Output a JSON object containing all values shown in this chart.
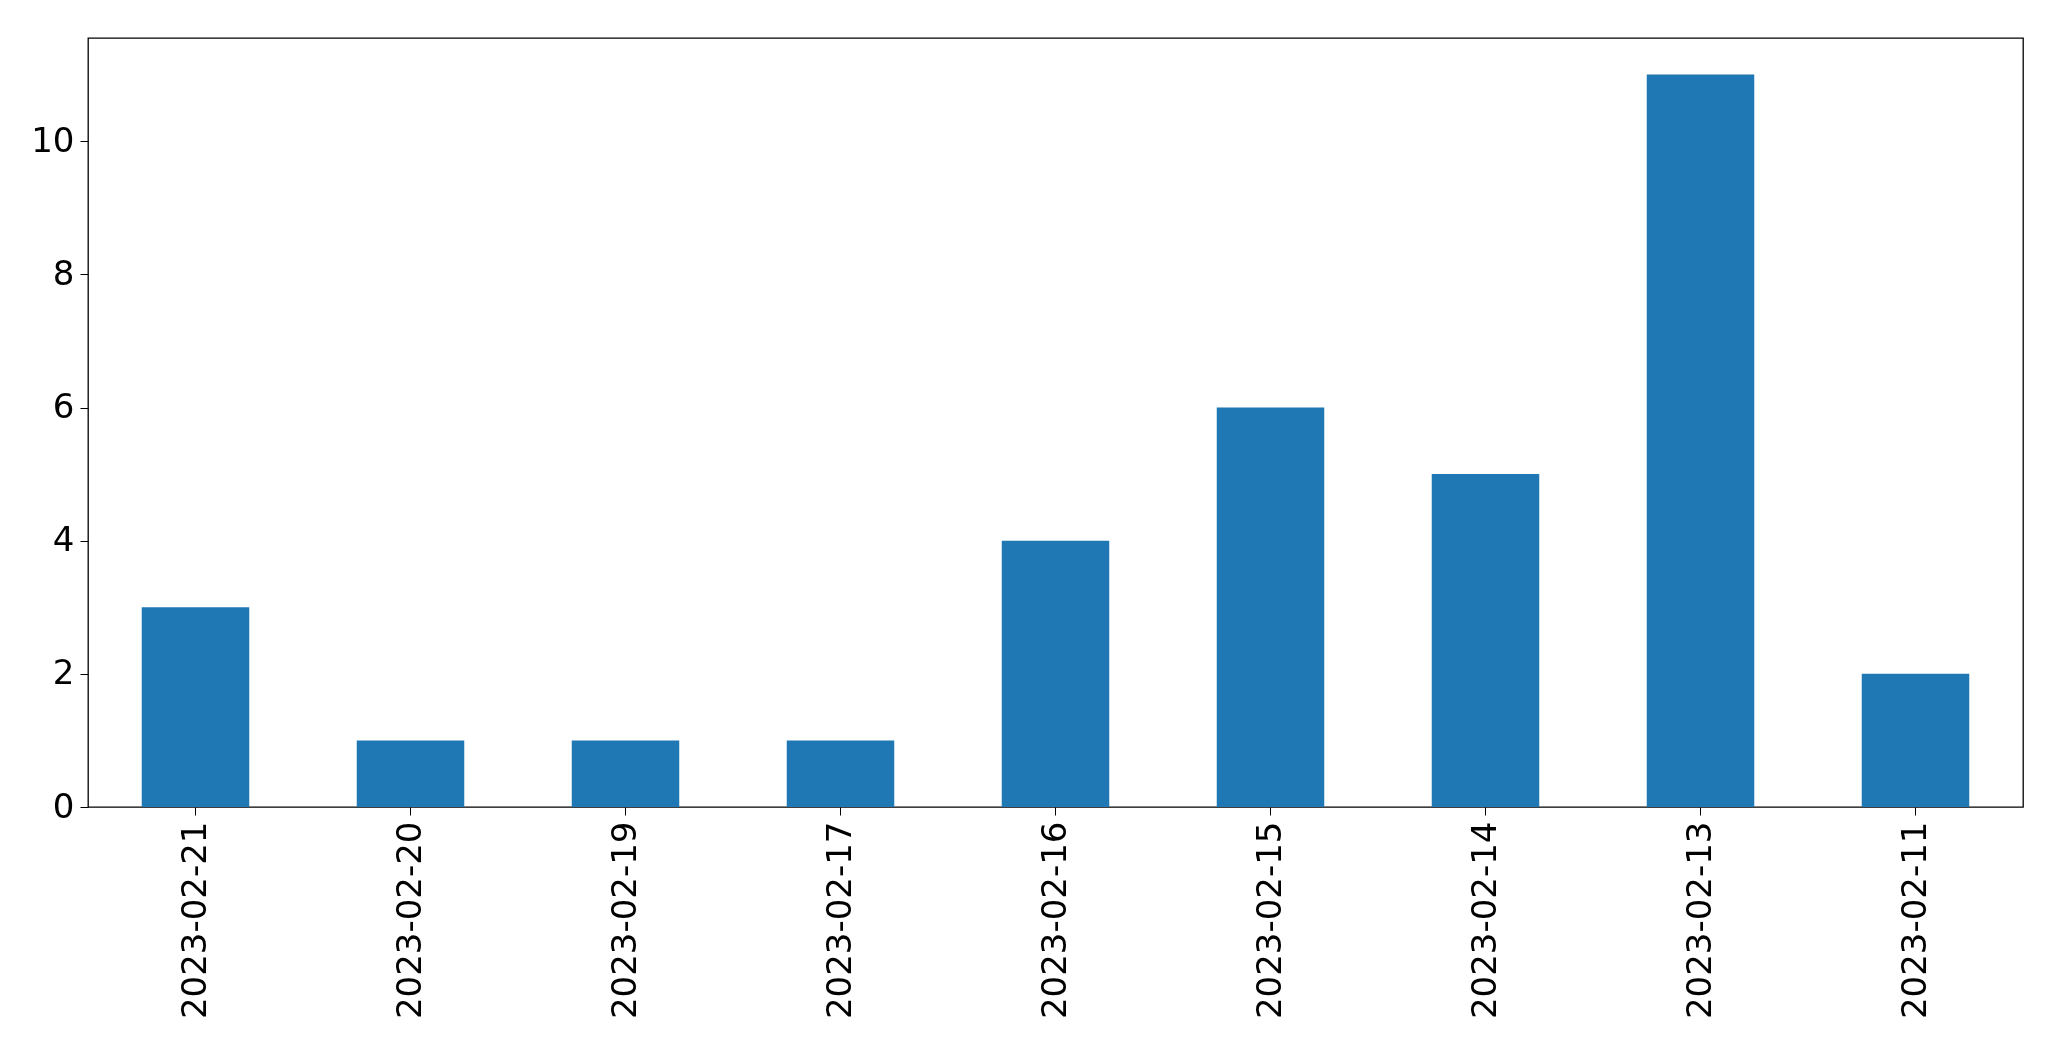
{
  "chart_data": {
    "type": "bar",
    "categories": [
      "2023-02-21",
      "2023-02-20",
      "2023-02-19",
      "2023-02-17",
      "2023-02-16",
      "2023-02-15",
      "2023-02-14",
      "2023-02-13",
      "2023-02-11"
    ],
    "values": [
      3,
      1,
      1,
      1,
      4,
      6,
      5,
      11,
      2
    ],
    "color": "#1f77b4",
    "ylim": [
      0,
      11.55
    ],
    "yticks": [
      0,
      2,
      4,
      6,
      8,
      10
    ],
    "grid": false
  }
}
